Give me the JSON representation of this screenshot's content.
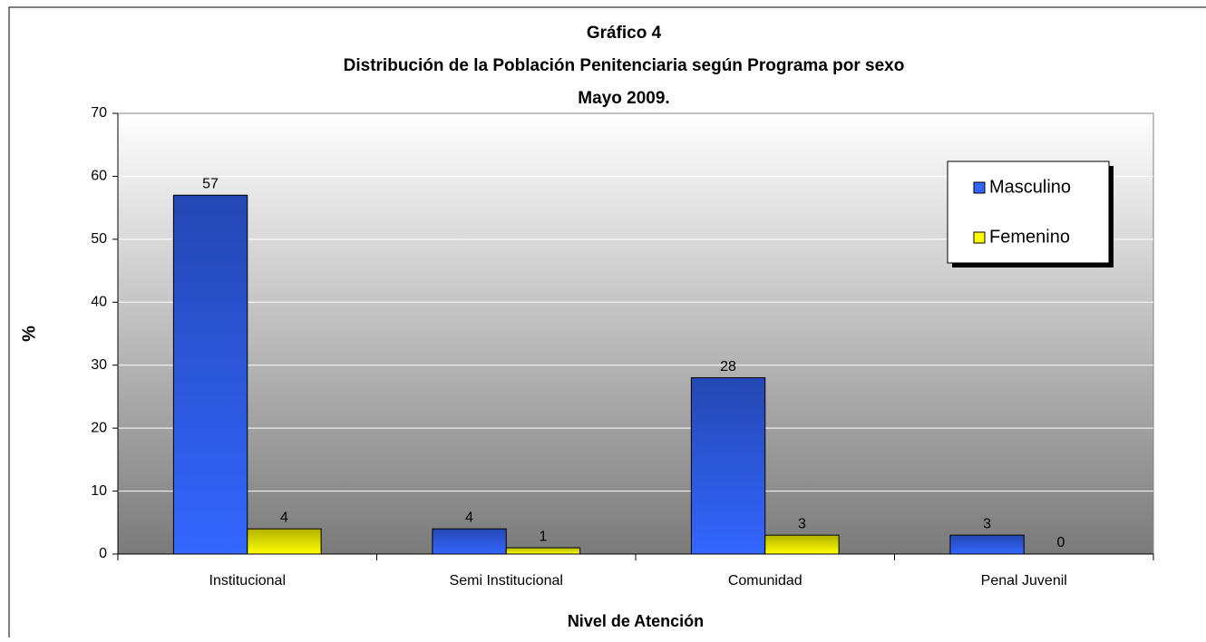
{
  "chart_data": {
    "type": "bar",
    "title": [
      "Gráfico 4",
      "Distribución de la Población Penitenciaria según Programa por sexo",
      "Mayo 2009."
    ],
    "x_label": "Nivel de Atención",
    "y_label": "%",
    "categories": [
      "Institucional",
      "Semi Institucional",
      "Comunidad",
      "Penal Juvenil"
    ],
    "series": [
      {
        "name": "Masculino",
        "color": "#3366ff",
        "values": [
          57,
          4,
          28,
          3
        ]
      },
      {
        "name": "Femenino",
        "color": "#ffff00",
        "values": [
          4,
          1,
          3,
          0
        ]
      }
    ],
    "ylim": [
      0,
      70
    ],
    "yticks": [
      0,
      10,
      20,
      30,
      40,
      50,
      60,
      70
    ],
    "grid": true,
    "legend": "upper right"
  }
}
